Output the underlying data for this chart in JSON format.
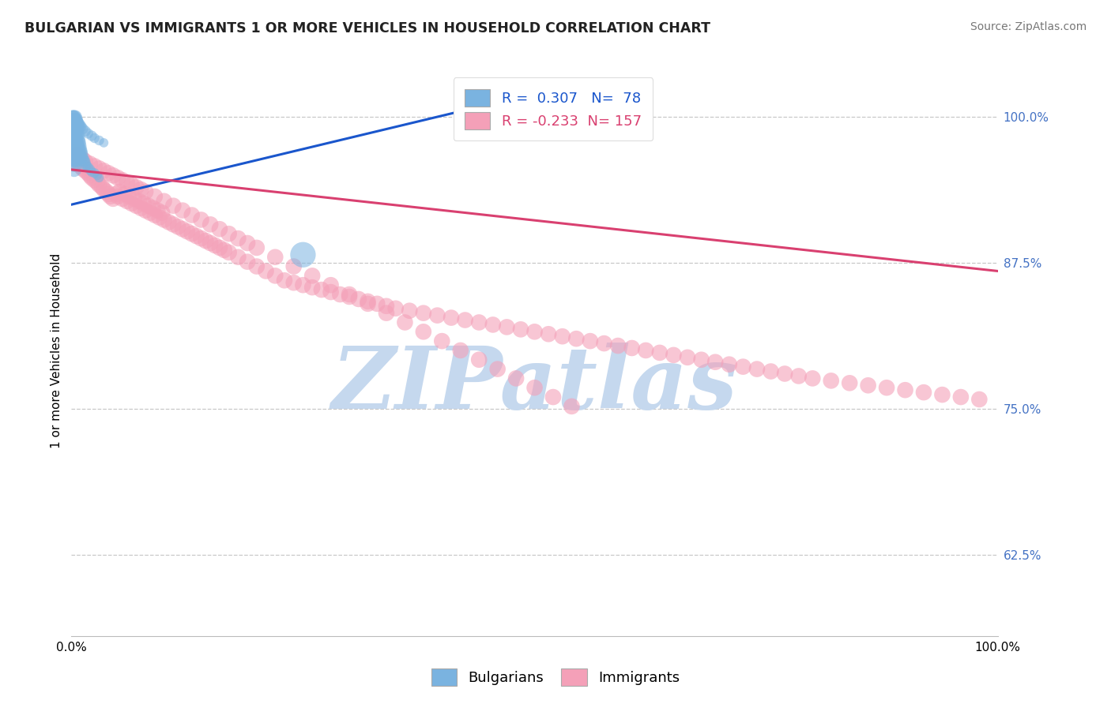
{
  "title": "BULGARIAN VS IMMIGRANTS 1 OR MORE VEHICLES IN HOUSEHOLD CORRELATION CHART",
  "source_text": "Source: ZipAtlas.com",
  "ylabel": "1 or more Vehicles in Household",
  "legend_blue_label": "Bulgarians",
  "legend_pink_label": "Immigrants",
  "R_blue": 0.307,
  "N_blue": 78,
  "R_pink": -0.233,
  "N_pink": 157,
  "ytick_labels": [
    "62.5%",
    "75.0%",
    "87.5%",
    "100.0%"
  ],
  "ytick_values": [
    0.625,
    0.75,
    0.875,
    1.0
  ],
  "xlim": [
    0.0,
    1.0
  ],
  "ylim": [
    0.555,
    1.045
  ],
  "blue_color": "#7ab3e0",
  "pink_color": "#f4a0b8",
  "blue_line_color": "#1a56cc",
  "pink_line_color": "#d94070",
  "background_color": "#ffffff",
  "watermark_text": "ZIPatlas",
  "watermark_color": "#c5d8ee",
  "title_fontsize": 12.5,
  "source_fontsize": 10,
  "axis_label_fontsize": 11,
  "tick_fontsize": 11,
  "legend_fontsize": 13,
  "blue_line": [
    0.0,
    0.925,
    0.42,
    1.005
  ],
  "pink_line": [
    0.0,
    0.955,
    1.0,
    0.868
  ],
  "blue_scatter_x": [
    0.001,
    0.001,
    0.001,
    0.001,
    0.001,
    0.002,
    0.002,
    0.002,
    0.002,
    0.002,
    0.002,
    0.003,
    0.003,
    0.003,
    0.003,
    0.003,
    0.003,
    0.003,
    0.003,
    0.003,
    0.004,
    0.004,
    0.004,
    0.004,
    0.004,
    0.004,
    0.005,
    0.005,
    0.005,
    0.005,
    0.005,
    0.006,
    0.006,
    0.006,
    0.007,
    0.007,
    0.007,
    0.008,
    0.008,
    0.009,
    0.009,
    0.01,
    0.01,
    0.011,
    0.012,
    0.013,
    0.014,
    0.015,
    0.016,
    0.018,
    0.02,
    0.022,
    0.025,
    0.028,
    0.03,
    0.001,
    0.001,
    0.002,
    0.002,
    0.003,
    0.003,
    0.004,
    0.004,
    0.005,
    0.005,
    0.006,
    0.007,
    0.008,
    0.009,
    0.01,
    0.012,
    0.015,
    0.018,
    0.022,
    0.025,
    0.03,
    0.035,
    0.25
  ],
  "blue_scatter_y": [
    0.99,
    0.985,
    0.98,
    0.975,
    0.97,
    0.99,
    0.985,
    0.98,
    0.975,
    0.97,
    0.965,
    0.995,
    0.99,
    0.985,
    0.98,
    0.975,
    0.97,
    0.965,
    0.96,
    0.955,
    0.99,
    0.985,
    0.98,
    0.975,
    0.97,
    0.965,
    0.985,
    0.98,
    0.975,
    0.97,
    0.965,
    0.98,
    0.975,
    0.97,
    0.978,
    0.973,
    0.968,
    0.975,
    0.97,
    0.972,
    0.967,
    0.97,
    0.965,
    0.968,
    0.965,
    0.963,
    0.962,
    0.96,
    0.958,
    0.957,
    0.955,
    0.953,
    0.952,
    0.95,
    0.948,
    1.0,
    0.998,
    1.0,
    0.998,
    1.0,
    0.998,
    1.0,
    0.998,
    0.998,
    0.996,
    0.996,
    0.994,
    0.994,
    0.992,
    0.992,
    0.99,
    0.988,
    0.986,
    0.984,
    0.982,
    0.98,
    0.978,
    0.882
  ],
  "blue_scatter_sizes": [
    120,
    100,
    140,
    90,
    110,
    130,
    110,
    150,
    100,
    120,
    90,
    160,
    140,
    120,
    100,
    180,
    160,
    140,
    120,
    100,
    150,
    130,
    110,
    90,
    170,
    150,
    140,
    120,
    100,
    80,
    160,
    130,
    110,
    90,
    120,
    100,
    80,
    110,
    90,
    100,
    80,
    90,
    70,
    80,
    70,
    70,
    65,
    60,
    55,
    50,
    50,
    45,
    45,
    40,
    40,
    90,
    80,
    90,
    80,
    90,
    80,
    90,
    80,
    85,
    75,
    75,
    70,
    70,
    65,
    65,
    60,
    55,
    50,
    50,
    45,
    45,
    40,
    300
  ],
  "pink_scatter_x": [
    0.005,
    0.008,
    0.01,
    0.012,
    0.015,
    0.018,
    0.02,
    0.022,
    0.025,
    0.028,
    0.03,
    0.033,
    0.035,
    0.038,
    0.04,
    0.042,
    0.045,
    0.048,
    0.05,
    0.052,
    0.055,
    0.058,
    0.06,
    0.062,
    0.065,
    0.068,
    0.07,
    0.073,
    0.075,
    0.078,
    0.08,
    0.083,
    0.085,
    0.088,
    0.09,
    0.093,
    0.095,
    0.098,
    0.1,
    0.105,
    0.11,
    0.115,
    0.12,
    0.125,
    0.13,
    0.135,
    0.14,
    0.145,
    0.15,
    0.155,
    0.16,
    0.165,
    0.17,
    0.18,
    0.19,
    0.2,
    0.21,
    0.22,
    0.23,
    0.24,
    0.25,
    0.26,
    0.27,
    0.28,
    0.29,
    0.3,
    0.31,
    0.32,
    0.33,
    0.34,
    0.35,
    0.365,
    0.38,
    0.395,
    0.41,
    0.425,
    0.44,
    0.455,
    0.47,
    0.485,
    0.5,
    0.515,
    0.53,
    0.545,
    0.56,
    0.575,
    0.59,
    0.605,
    0.62,
    0.635,
    0.65,
    0.665,
    0.68,
    0.695,
    0.71,
    0.725,
    0.74,
    0.755,
    0.77,
    0.785,
    0.8,
    0.82,
    0.84,
    0.86,
    0.88,
    0.9,
    0.92,
    0.94,
    0.96,
    0.98,
    0.003,
    0.006,
    0.009,
    0.012,
    0.015,
    0.02,
    0.025,
    0.03,
    0.035,
    0.04,
    0.045,
    0.05,
    0.055,
    0.06,
    0.065,
    0.07,
    0.075,
    0.08,
    0.09,
    0.1,
    0.11,
    0.12,
    0.13,
    0.14,
    0.15,
    0.16,
    0.17,
    0.18,
    0.19,
    0.2,
    0.22,
    0.24,
    0.26,
    0.28,
    0.3,
    0.32,
    0.34,
    0.36,
    0.38,
    0.4,
    0.42,
    0.44,
    0.46,
    0.48,
    0.5,
    0.52,
    0.54
  ],
  "pink_scatter_y": [
    0.96,
    0.962,
    0.958,
    0.956,
    0.954,
    0.952,
    0.95,
    0.948,
    0.946,
    0.944,
    0.942,
    0.94,
    0.938,
    0.936,
    0.934,
    0.932,
    0.93,
    0.934,
    0.932,
    0.936,
    0.93,
    0.934,
    0.928,
    0.932,
    0.926,
    0.93,
    0.924,
    0.928,
    0.922,
    0.926,
    0.92,
    0.924,
    0.918,
    0.922,
    0.916,
    0.92,
    0.914,
    0.918,
    0.912,
    0.91,
    0.908,
    0.906,
    0.904,
    0.902,
    0.9,
    0.898,
    0.896,
    0.894,
    0.892,
    0.89,
    0.888,
    0.886,
    0.884,
    0.88,
    0.876,
    0.872,
    0.868,
    0.864,
    0.86,
    0.858,
    0.856,
    0.854,
    0.852,
    0.85,
    0.848,
    0.846,
    0.844,
    0.842,
    0.84,
    0.838,
    0.836,
    0.834,
    0.832,
    0.83,
    0.828,
    0.826,
    0.824,
    0.822,
    0.82,
    0.818,
    0.816,
    0.814,
    0.812,
    0.81,
    0.808,
    0.806,
    0.804,
    0.802,
    0.8,
    0.798,
    0.796,
    0.794,
    0.792,
    0.79,
    0.788,
    0.786,
    0.784,
    0.782,
    0.78,
    0.778,
    0.776,
    0.774,
    0.772,
    0.77,
    0.768,
    0.766,
    0.764,
    0.762,
    0.76,
    0.758,
    0.97,
    0.968,
    0.966,
    0.964,
    0.962,
    0.96,
    0.958,
    0.956,
    0.954,
    0.952,
    0.95,
    0.948,
    0.946,
    0.944,
    0.942,
    0.94,
    0.938,
    0.936,
    0.932,
    0.928,
    0.924,
    0.92,
    0.916,
    0.912,
    0.908,
    0.904,
    0.9,
    0.896,
    0.892,
    0.888,
    0.88,
    0.872,
    0.864,
    0.856,
    0.848,
    0.84,
    0.832,
    0.824,
    0.816,
    0.808,
    0.8,
    0.792,
    0.784,
    0.776,
    0.768,
    0.76,
    0.752
  ]
}
